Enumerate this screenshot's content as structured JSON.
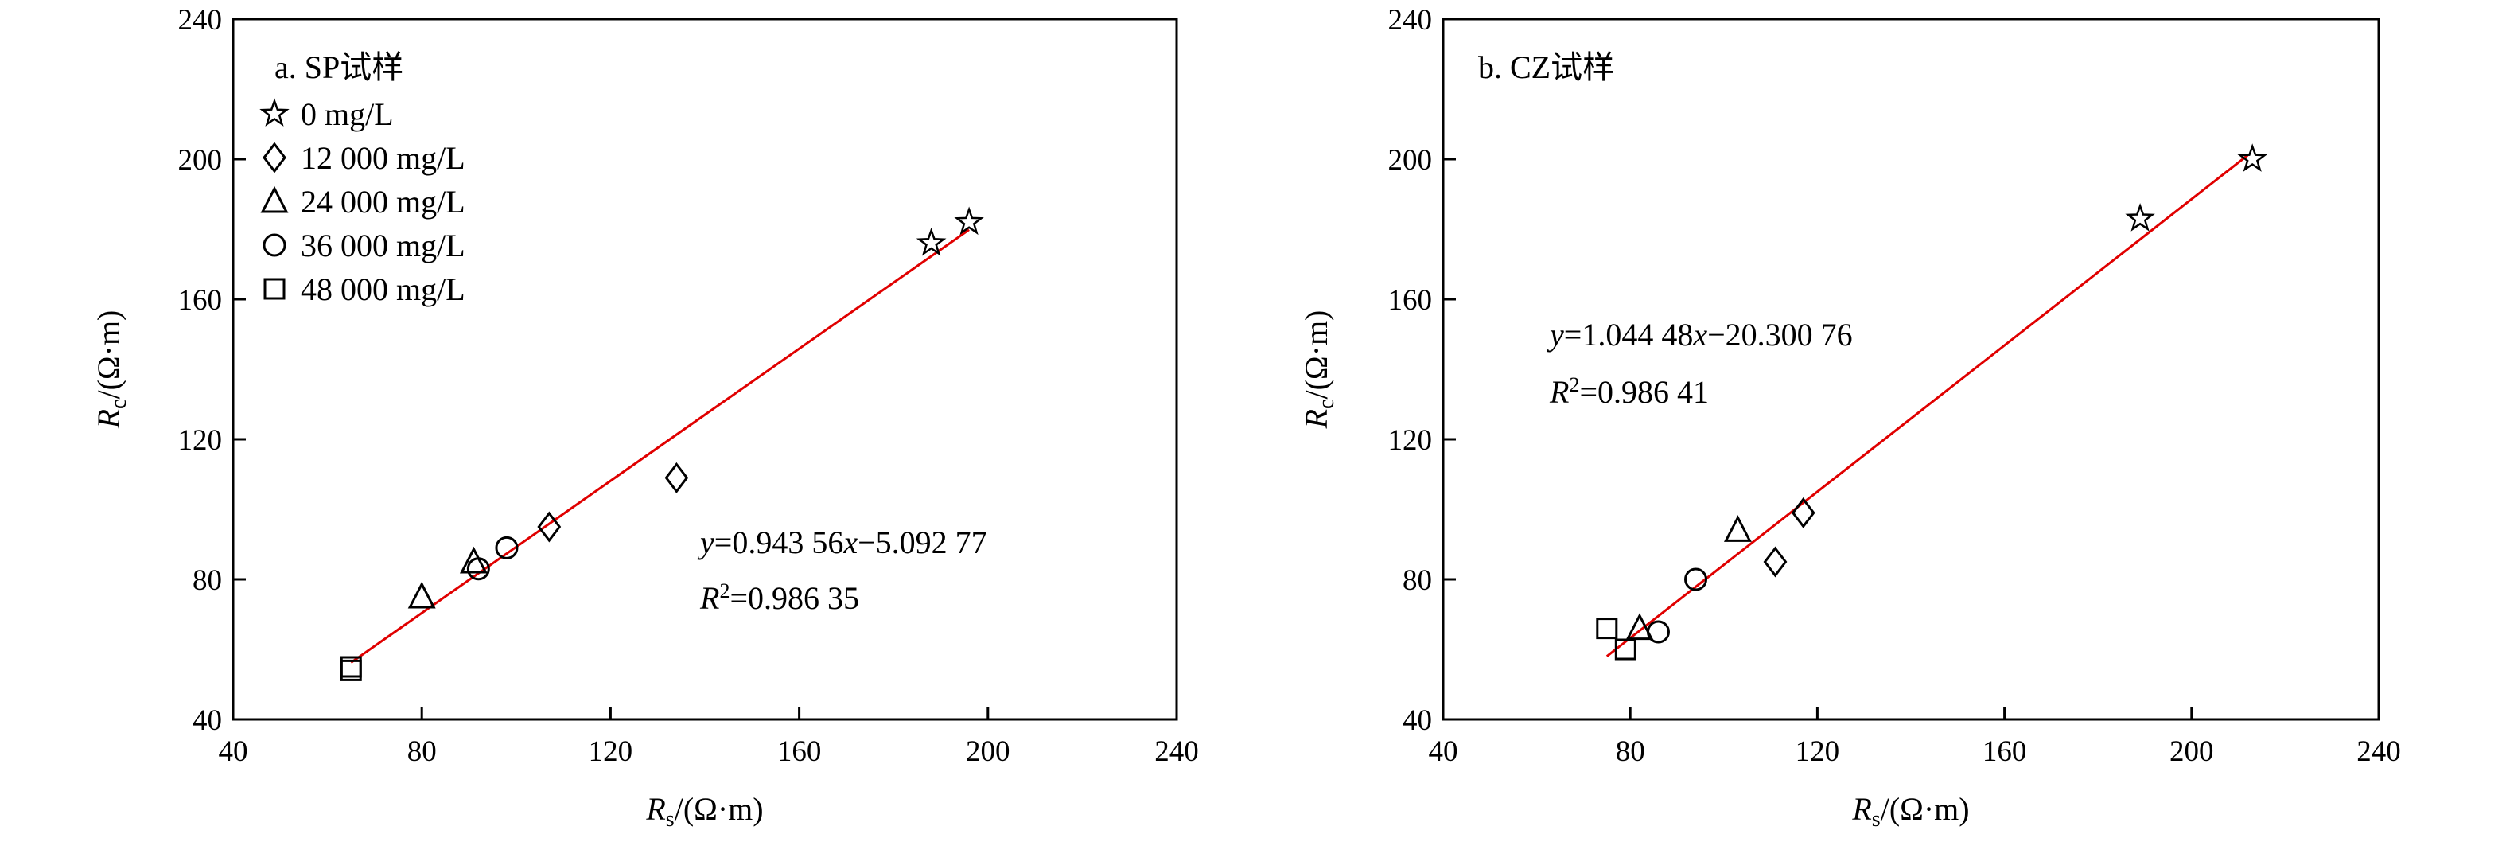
{
  "chart_data": [
    {
      "type": "scatter",
      "title": "a. SP试样",
      "xlabel": {
        "main": "R",
        "sub": "s",
        "unit": "/(Ω·m)"
      },
      "ylabel": {
        "main": "R",
        "sub": "c",
        "unit": "/(Ω·m)"
      },
      "xlim": [
        40,
        240
      ],
      "ylim": [
        40,
        240
      ],
      "xticks": [
        "40",
        "80",
        "120",
        "160",
        "200",
        "240"
      ],
      "yticks": [
        "40",
        "80",
        "120",
        "160",
        "200",
        "240"
      ],
      "grid": false,
      "legend_placement": "top-left",
      "series": [
        {
          "name": "0 mg/L",
          "marker": "star",
          "points": [
            [
              188,
              176
            ],
            [
              196,
              182
            ]
          ]
        },
        {
          "name": "12 000 mg/L",
          "marker": "diamond",
          "points": [
            [
              107,
              95
            ],
            [
              134,
              109
            ]
          ]
        },
        {
          "name": "24 000 mg/L",
          "marker": "triangle",
          "points": [
            [
              80,
              75
            ],
            [
              91,
              85
            ]
          ]
        },
        {
          "name": "36 000 mg/L",
          "marker": "circle",
          "points": [
            [
              92,
              83
            ],
            [
              98,
              89
            ]
          ]
        },
        {
          "name": "48 000 mg/L",
          "marker": "square",
          "points": [
            [
              65,
              55
            ],
            [
              65,
              54
            ]
          ]
        }
      ],
      "fit": {
        "slope": 0.94356,
        "intercept": -5.09277,
        "x_range": [
          65,
          196
        ],
        "color": "#e00000"
      },
      "equation": {
        "y": "y",
        "coef": "=0.943 56",
        "x": "x",
        "rest": "−5.092 77"
      },
      "r2": {
        "r": "R",
        "sup": "2",
        "value": "=0.986 35"
      }
    },
    {
      "type": "scatter",
      "title": "b. CZ试样",
      "xlabel": {
        "main": "R",
        "sub": "s",
        "unit": "/(Ω·m)"
      },
      "ylabel": {
        "main": "R",
        "sub": "c",
        "unit": "/(Ω·m)"
      },
      "xlim": [
        40,
        240
      ],
      "ylim": [
        40,
        240
      ],
      "xticks": [
        "40",
        "80",
        "120",
        "160",
        "200",
        "240"
      ],
      "yticks": [
        "40",
        "80",
        "120",
        "160",
        "200",
        "240"
      ],
      "grid": false,
      "series": [
        {
          "name": "0 mg/L",
          "marker": "star",
          "points": [
            [
              189,
              183
            ],
            [
              213,
              200
            ]
          ]
        },
        {
          "name": "12 000 mg/L",
          "marker": "diamond",
          "points": [
            [
              111,
              85
            ],
            [
              117,
              99
            ]
          ]
        },
        {
          "name": "24 000 mg/L",
          "marker": "triangle",
          "points": [
            [
              82,
              66
            ],
            [
              103,
              94
            ]
          ]
        },
        {
          "name": "36 000 mg/L",
          "marker": "circle",
          "points": [
            [
              86,
              65
            ],
            [
              94,
              80
            ]
          ]
        },
        {
          "name": "48 000 mg/L",
          "marker": "square",
          "points": [
            [
              75,
              66
            ],
            [
              79,
              60
            ]
          ]
        }
      ],
      "fit": {
        "slope": 1.04448,
        "intercept": -20.30076,
        "x_range": [
          75,
          212
        ],
        "color": "#e00000"
      },
      "equation": {
        "y": "y",
        "coef": "=1.044 48",
        "x": "x",
        "rest": "−20.300 76"
      },
      "r2": {
        "r": "R",
        "sup": "2",
        "value": "=0.986 41"
      }
    }
  ]
}
